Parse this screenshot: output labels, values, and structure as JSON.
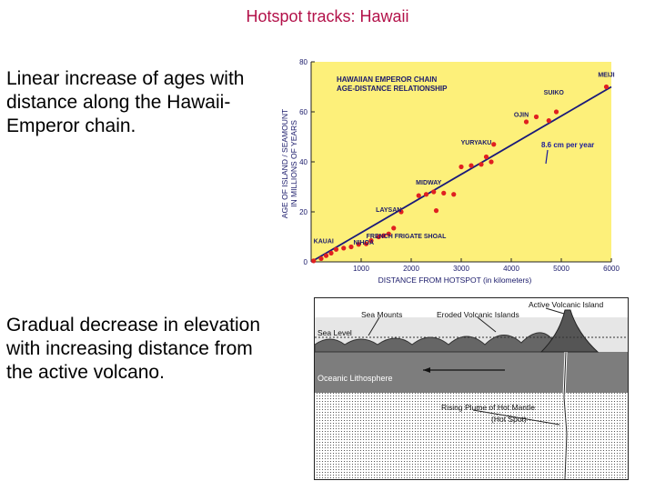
{
  "slide": {
    "title": "Hotspot tracks: Hawaii",
    "bullet1": "Linear increase of ages with distance along the Hawaii-Emperor chain.",
    "bullet2": "Gradual decrease in elevation with increasing distance from the active volcano."
  },
  "chart_data": {
    "type": "scatter",
    "title": "HAWAIIAN EMPEROR CHAIN AGE-DISTANCE RELATIONSHIP",
    "title_lines": [
      "HAWAIIAN EMPEROR CHAIN",
      "AGE-DISTANCE RELATIONSHIP"
    ],
    "xlabel": "DISTANCE FROM HOTSPOT (in kilometers)",
    "ylabel": "AGE OF ISLAND / SEAMOUNT IN MILLIONS OF YEARS",
    "ylabel_lines": [
      "AGE OF ISLAND / SEAMOUNT",
      "IN MILLIONS OF YEARS"
    ],
    "xlim": [
      0,
      6000
    ],
    "ylim": [
      0,
      80
    ],
    "xticks": [
      "1000",
      "2000",
      "3000",
      "4000",
      "5000",
      "6000"
    ],
    "yticks": [
      "0",
      "20",
      "40",
      "60",
      "80"
    ],
    "background": "#fdf07a",
    "point_color": "#e02020",
    "line_color": "#1a1a7a",
    "rate_color": "#1a1a9a",
    "rate_label": "8.6 cm per year",
    "fit_line": {
      "x": [
        0,
        6000
      ],
      "y": [
        0,
        70
      ]
    },
    "points": [
      {
        "x": 50,
        "y": 0.4
      },
      {
        "x": 200,
        "y": 1.3
      },
      {
        "x": 300,
        "y": 2.5
      },
      {
        "x": 400,
        "y": 3.5
      },
      {
        "x": 500,
        "y": 5
      },
      {
        "x": 650,
        "y": 5.5
      },
      {
        "x": 800,
        "y": 6
      },
      {
        "x": 950,
        "y": 7
      },
      {
        "x": 1100,
        "y": 7.2
      },
      {
        "x": 1200,
        "y": 8.5
      },
      {
        "x": 1350,
        "y": 10
      },
      {
        "x": 1450,
        "y": 10.5
      },
      {
        "x": 1550,
        "y": 11.2
      },
      {
        "x": 1650,
        "y": 13.5
      },
      {
        "x": 1800,
        "y": 20
      },
      {
        "x": 2150,
        "y": 26.5
      },
      {
        "x": 2300,
        "y": 27
      },
      {
        "x": 2450,
        "y": 28
      },
      {
        "x": 2500,
        "y": 20.5
      },
      {
        "x": 2650,
        "y": 27.5
      },
      {
        "x": 2850,
        "y": 27
      },
      {
        "x": 3000,
        "y": 38
      },
      {
        "x": 3200,
        "y": 38.5
      },
      {
        "x": 3400,
        "y": 39
      },
      {
        "x": 3500,
        "y": 42
      },
      {
        "x": 3600,
        "y": 40
      },
      {
        "x": 3650,
        "y": 47
      },
      {
        "x": 4300,
        "y": 56
      },
      {
        "x": 4500,
        "y": 58
      },
      {
        "x": 4750,
        "y": 56.5
      },
      {
        "x": 4900,
        "y": 60
      },
      {
        "x": 5900,
        "y": 70
      }
    ],
    "labels": [
      {
        "text": "MEIJI",
        "x": 5900,
        "y": 74
      },
      {
        "text": "SUIKO",
        "x": 4850,
        "y": 67
      },
      {
        "text": "OJIN",
        "x": 4200,
        "y": 58
      },
      {
        "text": "YURYAKU",
        "x": 3300,
        "y": 47
      },
      {
        "text": "MIDWAY",
        "x": 2350,
        "y": 31
      },
      {
        "text": "LAYSAN",
        "x": 1550,
        "y": 20
      },
      {
        "text": "FRENCH FRIGATE SHOAL",
        "x": 1900,
        "y": 9.5
      },
      {
        "text": "KAUAI",
        "x": 250,
        "y": 7.5
      },
      {
        "text": "NIHOA",
        "x": 1050,
        "y": 7
      }
    ]
  },
  "diagram": {
    "labels": {
      "sea_mounts": "Sea Mounts",
      "eroded": "Eroded Volcanic Islands",
      "active": "Active Volcanic Island",
      "sea_level": "Sea Level",
      "lithosphere": "Oceanic Lithosphere",
      "plume": "Rising Plume of Hot Mantle",
      "hot_spot": "(Hot Spot)"
    }
  }
}
